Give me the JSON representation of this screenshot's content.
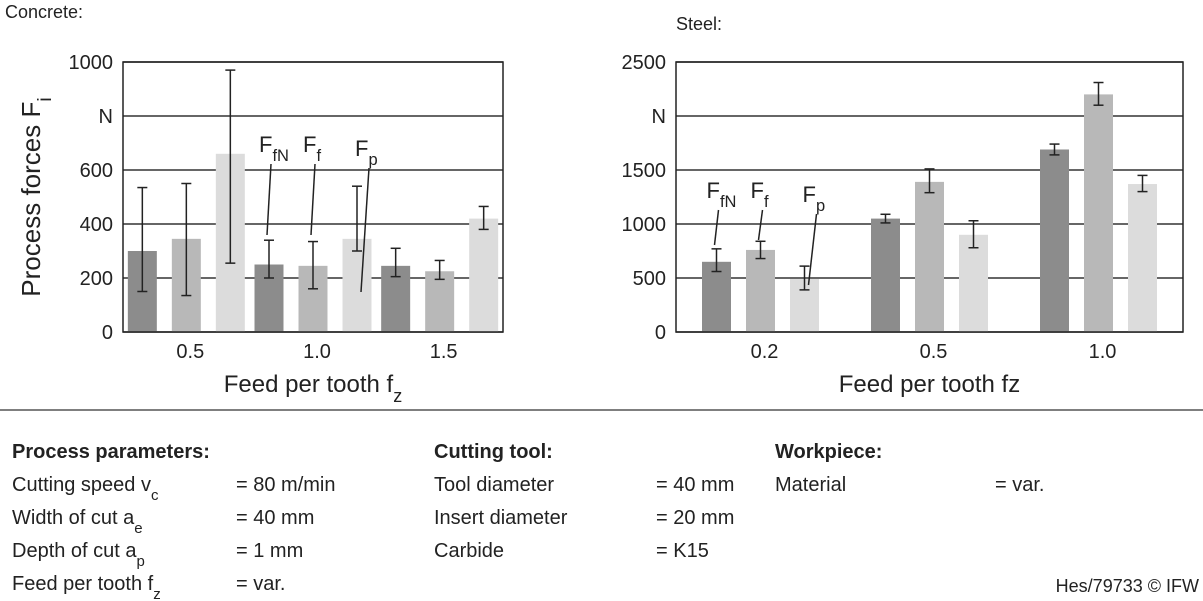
{
  "chart_data": [
    {
      "type": "bar",
      "title": "Concrete:",
      "ylabel": [
        "Process forces F",
        "i"
      ],
      "xlabel": [
        "Feed per tooth f",
        "z"
      ],
      "categories": [
        "0.5",
        "1.0",
        "1.5"
      ],
      "ylim": [
        0,
        1000
      ],
      "yticks": [
        0,
        200,
        400,
        600,
        {
          "value": 800,
          "label": "N"
        },
        1000
      ],
      "grid": true,
      "series": [
        {
          "name": [
            "F",
            "fN"
          ],
          "color": "#8c8c8c",
          "values": [
            300,
            250,
            245
          ],
          "lower": [
            150,
            200,
            205
          ],
          "upper": [
            535,
            340,
            310
          ]
        },
        {
          "name": [
            "F",
            "f"
          ],
          "color": "#b8b8b8",
          "values": [
            345,
            245,
            225
          ],
          "lower": [
            135,
            160,
            195
          ],
          "upper": [
            550,
            335,
            265
          ]
        },
        {
          "name": [
            "F",
            "p"
          ],
          "color": "#dcdcdc",
          "values": [
            660,
            345,
            420
          ],
          "lower": [
            255,
            300,
            380
          ],
          "upper": [
            970,
            540,
            465
          ]
        }
      ]
    },
    {
      "type": "bar",
      "title": "Steel:",
      "xlabel": [
        "Feed per tooth fz"
      ],
      "categories": [
        "0.2",
        "0.5",
        "1.0"
      ],
      "ylim": [
        0,
        2500
      ],
      "yticks": [
        0,
        500,
        1000,
        1500,
        {
          "value": 2000,
          "label": "N"
        },
        2500
      ],
      "grid": true,
      "series": [
        {
          "name": [
            "F",
            "fN"
          ],
          "color": "#8c8c8c",
          "values": [
            650,
            1050,
            1690
          ],
          "lower": [
            560,
            1010,
            1640
          ],
          "upper": [
            770,
            1090,
            1740
          ]
        },
        {
          "name": [
            "F",
            "f"
          ],
          "color": "#b8b8b8",
          "values": [
            760,
            1390,
            2200
          ],
          "lower": [
            680,
            1290,
            2100
          ],
          "upper": [
            840,
            1510,
            2310
          ]
        },
        {
          "name": [
            "F",
            "p"
          ],
          "color": "#dcdcdc",
          "values": [
            490,
            900,
            1370
          ],
          "lower": [
            390,
            780,
            1300
          ],
          "upper": [
            610,
            1030,
            1450
          ]
        }
      ]
    }
  ],
  "parameters": [
    {
      "heading": "Process parameters:",
      "rows": [
        {
          "label": [
            "Cutting speed v",
            "c"
          ],
          "value": "= 80 m/min"
        },
        {
          "label": [
            "Width of cut a",
            "e"
          ],
          "value": "= 40 mm"
        },
        {
          "label": [
            "Depth of cut a",
            "p"
          ],
          "value": "= 1 mm"
        },
        {
          "label": [
            "Feed per tooth f",
            "z"
          ],
          "value": "= var."
        }
      ]
    },
    {
      "heading": "Cutting tool:",
      "rows": [
        {
          "label": [
            "Tool diameter"
          ],
          "value": "= 40 mm"
        },
        {
          "label": [
            "Insert diameter"
          ],
          "value": "= 20 mm"
        },
        {
          "label": [
            "Carbide"
          ],
          "value": "= K15"
        }
      ]
    },
    {
      "heading": "Workpiece:",
      "rows": [
        {
          "label": [
            "Material"
          ],
          "value": "= var."
        }
      ]
    }
  ],
  "footer": "Hes/79733 © IFW"
}
